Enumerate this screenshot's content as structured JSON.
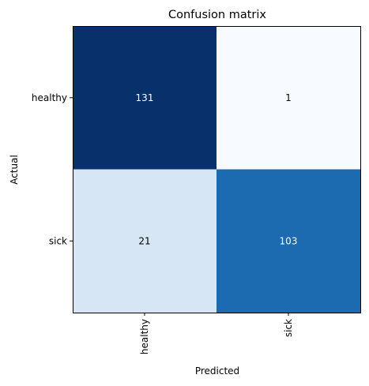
{
  "chart_data": {
    "type": "heatmap",
    "title": "Confusion matrix",
    "xlabel": "Predicted",
    "ylabel": "Actual",
    "x_categories": [
      "healthy",
      "sick"
    ],
    "y_categories": [
      "healthy",
      "sick"
    ],
    "values": [
      [
        131,
        1
      ],
      [
        21,
        103
      ]
    ],
    "colormap": "Blues",
    "cell_colors": [
      [
        "#08306b",
        "#f7fbff"
      ],
      [
        "#d6e6f4",
        "#1c6aaf"
      ]
    ],
    "text_colors": [
      [
        "#ffffff",
        "#000000"
      ],
      [
        "#000000",
        "#ffffff"
      ]
    ],
    "grid": false
  }
}
